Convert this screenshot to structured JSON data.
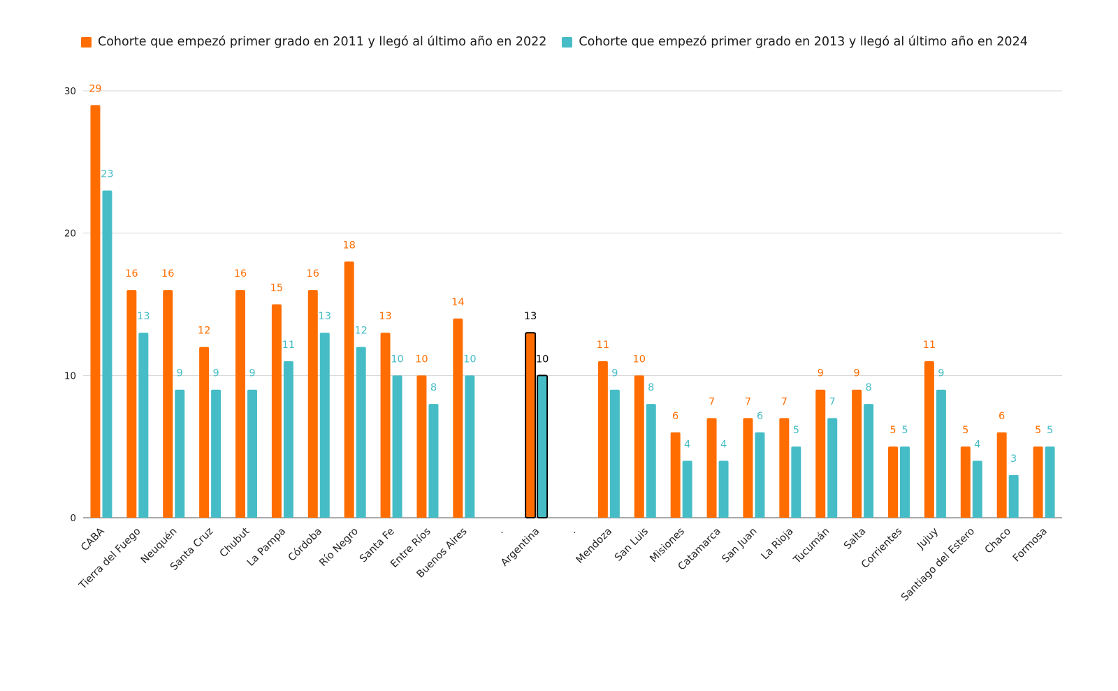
{
  "chart_data": {
    "type": "bar",
    "categories": [
      "CABA",
      "Tierra del Fuego",
      "Neuquén",
      "Santa Cruz",
      "Chubut",
      "La Pampa",
      "Córdoba",
      "Río Negro",
      "Santa Fe",
      "Entre Ríos",
      "Buenos Aires",
      ".",
      "Argentina",
      ".",
      "Mendoza",
      "San Luis",
      "Misiones",
      "Catamarca",
      "San Juan",
      "La Rioja",
      "Tucumán",
      "Salta",
      "Corrientes",
      "Jujuy",
      "Santiago del Estero",
      "Chaco",
      "Formosa"
    ],
    "series": [
      {
        "name": "Cohorte que empezó primer grado en 2011 y llegó al último año en 2022",
        "color": "#ff6d00",
        "values": [
          29,
          16,
          16,
          12,
          16,
          15,
          16,
          18,
          13,
          10,
          14,
          null,
          13,
          null,
          11,
          10,
          6,
          7,
          7,
          7,
          9,
          9,
          5,
          11,
          5,
          6,
          5
        ]
      },
      {
        "name": "Cohorte que empezó primer grado en 2013 y llegó al último año en 2024",
        "color": "#46bdc6",
        "values": [
          23,
          13,
          9,
          9,
          9,
          11,
          13,
          12,
          10,
          8,
          10,
          null,
          10,
          null,
          9,
          8,
          4,
          4,
          6,
          5,
          7,
          8,
          5,
          9,
          4,
          3,
          5
        ]
      }
    ],
    "highlight_category": "Argentina",
    "highlight_color": "#000000",
    "yticks": [
      0,
      10,
      20,
      30
    ],
    "ylim": [
      0,
      30
    ],
    "grid": true,
    "legend_position": "top-left"
  }
}
